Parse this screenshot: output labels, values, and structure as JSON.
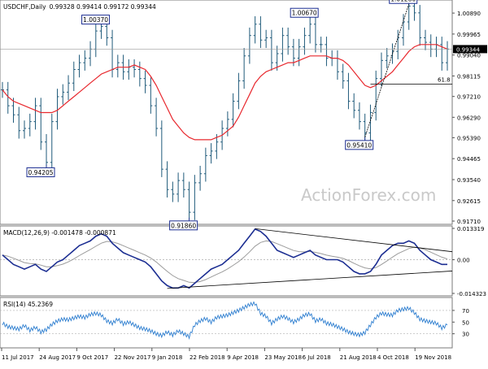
{
  "instrument": "USDCHF,Daily",
  "quote": "0.99328 0.99414 0.99172 0.99344",
  "watermark": "ActionForex.com",
  "colors": {
    "price_bar": "#1f5a7a",
    "ma": "#e8282e",
    "macd_line": "#1c2e92",
    "macd_signal": "#9b9b9b",
    "rsi": "#2f7fd0",
    "label_border": "#1c2e92",
    "last_price_bg": "#000000"
  },
  "chart_data": [
    {
      "type": "line",
      "name": "price",
      "y_ticks": [
        "1.00890",
        "0.99965",
        "0.99040",
        "0.98115",
        "0.97210",
        "0.96290",
        "0.95390",
        "0.94465",
        "0.93540",
        "0.92615",
        "0.91710"
      ],
      "ylim": [
        0.9171,
        1.0136
      ],
      "x_ticks": [
        "11 Jul 2017",
        "24 Aug 2017",
        "9 Oct 2017",
        "22 Nov 2017",
        "9 Jan 2018",
        "22 Feb 2018",
        "9 Apr 2018",
        "23 May 2018",
        "6 Jul 2018",
        "21 Aug 2018",
        "4 Oct 2018",
        "19 Nov 2018"
      ],
      "close_series": [
        0.975,
        0.968,
        0.964,
        0.957,
        0.958,
        0.961,
        0.968,
        0.952,
        0.943,
        0.961,
        0.972,
        0.974,
        0.978,
        0.984,
        0.987,
        0.989,
        0.993,
        1.001,
        1.003,
        0.998,
        0.984,
        0.987,
        0.983,
        0.985,
        0.984,
        0.98,
        0.977,
        0.968,
        0.958,
        0.94,
        0.931,
        0.929,
        0.935,
        0.931,
        0.921,
        0.934,
        0.938,
        0.946,
        0.948,
        0.952,
        0.958,
        0.962,
        0.97,
        0.979,
        0.99,
        0.999,
        1.004,
        0.997,
        0.998,
        0.987,
        0.991,
        0.999,
        0.994,
        0.989,
        0.994,
        0.999,
        1.004,
        0.995,
        0.995,
        0.989,
        0.989,
        0.983,
        0.979,
        0.97,
        0.966,
        0.961,
        0.956,
        0.965,
        0.98,
        0.988,
        0.99,
        0.992,
        0.998,
        1.005,
        1.012,
        1.009,
        0.998,
        0.996,
        0.993,
        0.995,
        0.987,
        0.993
      ],
      "ma_series": [
        0.975,
        0.972,
        0.97,
        0.969,
        0.968,
        0.967,
        0.966,
        0.965,
        0.965,
        0.965,
        0.966,
        0.968,
        0.97,
        0.972,
        0.974,
        0.976,
        0.978,
        0.98,
        0.982,
        0.983,
        0.984,
        0.985,
        0.985,
        0.985,
        0.986,
        0.985,
        0.984,
        0.981,
        0.977,
        0.972,
        0.967,
        0.962,
        0.959,
        0.956,
        0.954,
        0.953,
        0.953,
        0.953,
        0.953,
        0.954,
        0.955,
        0.957,
        0.959,
        0.963,
        0.968,
        0.973,
        0.978,
        0.981,
        0.983,
        0.984,
        0.985,
        0.986,
        0.987,
        0.987,
        0.988,
        0.989,
        0.99,
        0.99,
        0.99,
        0.99,
        0.989,
        0.989,
        0.988,
        0.986,
        0.983,
        0.98,
        0.977,
        0.976,
        0.977,
        0.979,
        0.981,
        0.983,
        0.986,
        0.989,
        0.992,
        0.994,
        0.995,
        0.995,
        0.995,
        0.995,
        0.994,
        0.993
      ],
      "labels": [
        {
          "text": "1.00370",
          "index": 18,
          "price": 1.0037
        },
        {
          "text": "0.94205",
          "index": 8,
          "price": 0.94205
        },
        {
          "text": "0.91860",
          "index": 34,
          "price": 0.9186
        },
        {
          "text": "1.00670",
          "index": 56,
          "price": 1.0067
        },
        {
          "text": "0.95410",
          "index": 66,
          "price": 0.9541
        },
        {
          "text": "1.01280",
          "index": 74,
          "price": 1.0128
        }
      ],
      "last_price": "0.99344",
      "fib_label": "61.8",
      "fib_level": 0.9776
    },
    {
      "type": "line",
      "name": "macd",
      "title": "MACD(12,26,9) -0.001478 -0.000871",
      "y_ticks": [
        "0.013319",
        "0.00",
        "-0.014323"
      ],
      "ylim": [
        -0.014323,
        0.013319
      ],
      "macd_series": [
        0.002,
        0.0,
        -0.002,
        -0.003,
        -0.004,
        -0.003,
        -0.002,
        -0.004,
        -0.005,
        -0.003,
        -0.001,
        0.0,
        0.002,
        0.004,
        0.006,
        0.007,
        0.008,
        0.01,
        0.011,
        0.01,
        0.007,
        0.005,
        0.003,
        0.002,
        0.001,
        0.0,
        -0.001,
        -0.003,
        -0.006,
        -0.009,
        -0.011,
        -0.012,
        -0.012,
        -0.011,
        -0.012,
        -0.01,
        -0.008,
        -0.006,
        -0.004,
        -0.003,
        -0.002,
        0.0,
        0.002,
        0.004,
        0.007,
        0.01,
        0.013,
        0.012,
        0.01,
        0.007,
        0.004,
        0.003,
        0.002,
        0.001,
        0.002,
        0.003,
        0.004,
        0.002,
        0.001,
        0.0,
        0.0,
        0.0,
        -0.001,
        -0.003,
        -0.005,
        -0.006,
        -0.006,
        -0.005,
        -0.002,
        0.002,
        0.004,
        0.006,
        0.007,
        0.007,
        0.008,
        0.007,
        0.004,
        0.002,
        0.0,
        -0.001,
        -0.002,
        -0.002
      ]
    },
    {
      "type": "line",
      "name": "rsi",
      "title": "RSI(14) 45.2369",
      "y_ticks": [
        "70",
        "50",
        "30"
      ],
      "ylim": [
        10,
        88
      ],
      "rsi_series": [
        48,
        42,
        40,
        38,
        44,
        36,
        41,
        33,
        37,
        46,
        52,
        55,
        54,
        57,
        60,
        58,
        63,
        65,
        62,
        52,
        48,
        55,
        47,
        50,
        45,
        40,
        38,
        35,
        30,
        27,
        33,
        28,
        35,
        30,
        25,
        45,
        52,
        56,
        50,
        58,
        60,
        62,
        66,
        70,
        75,
        80,
        82,
        65,
        60,
        48,
        55,
        60,
        56,
        50,
        55,
        62,
        64,
        52,
        55,
        48,
        46,
        42,
        38,
        33,
        30,
        28,
        32,
        45,
        58,
        65,
        63,
        62,
        70,
        72,
        74,
        66,
        55,
        52,
        50,
        48,
        40,
        45
      ]
    }
  ]
}
